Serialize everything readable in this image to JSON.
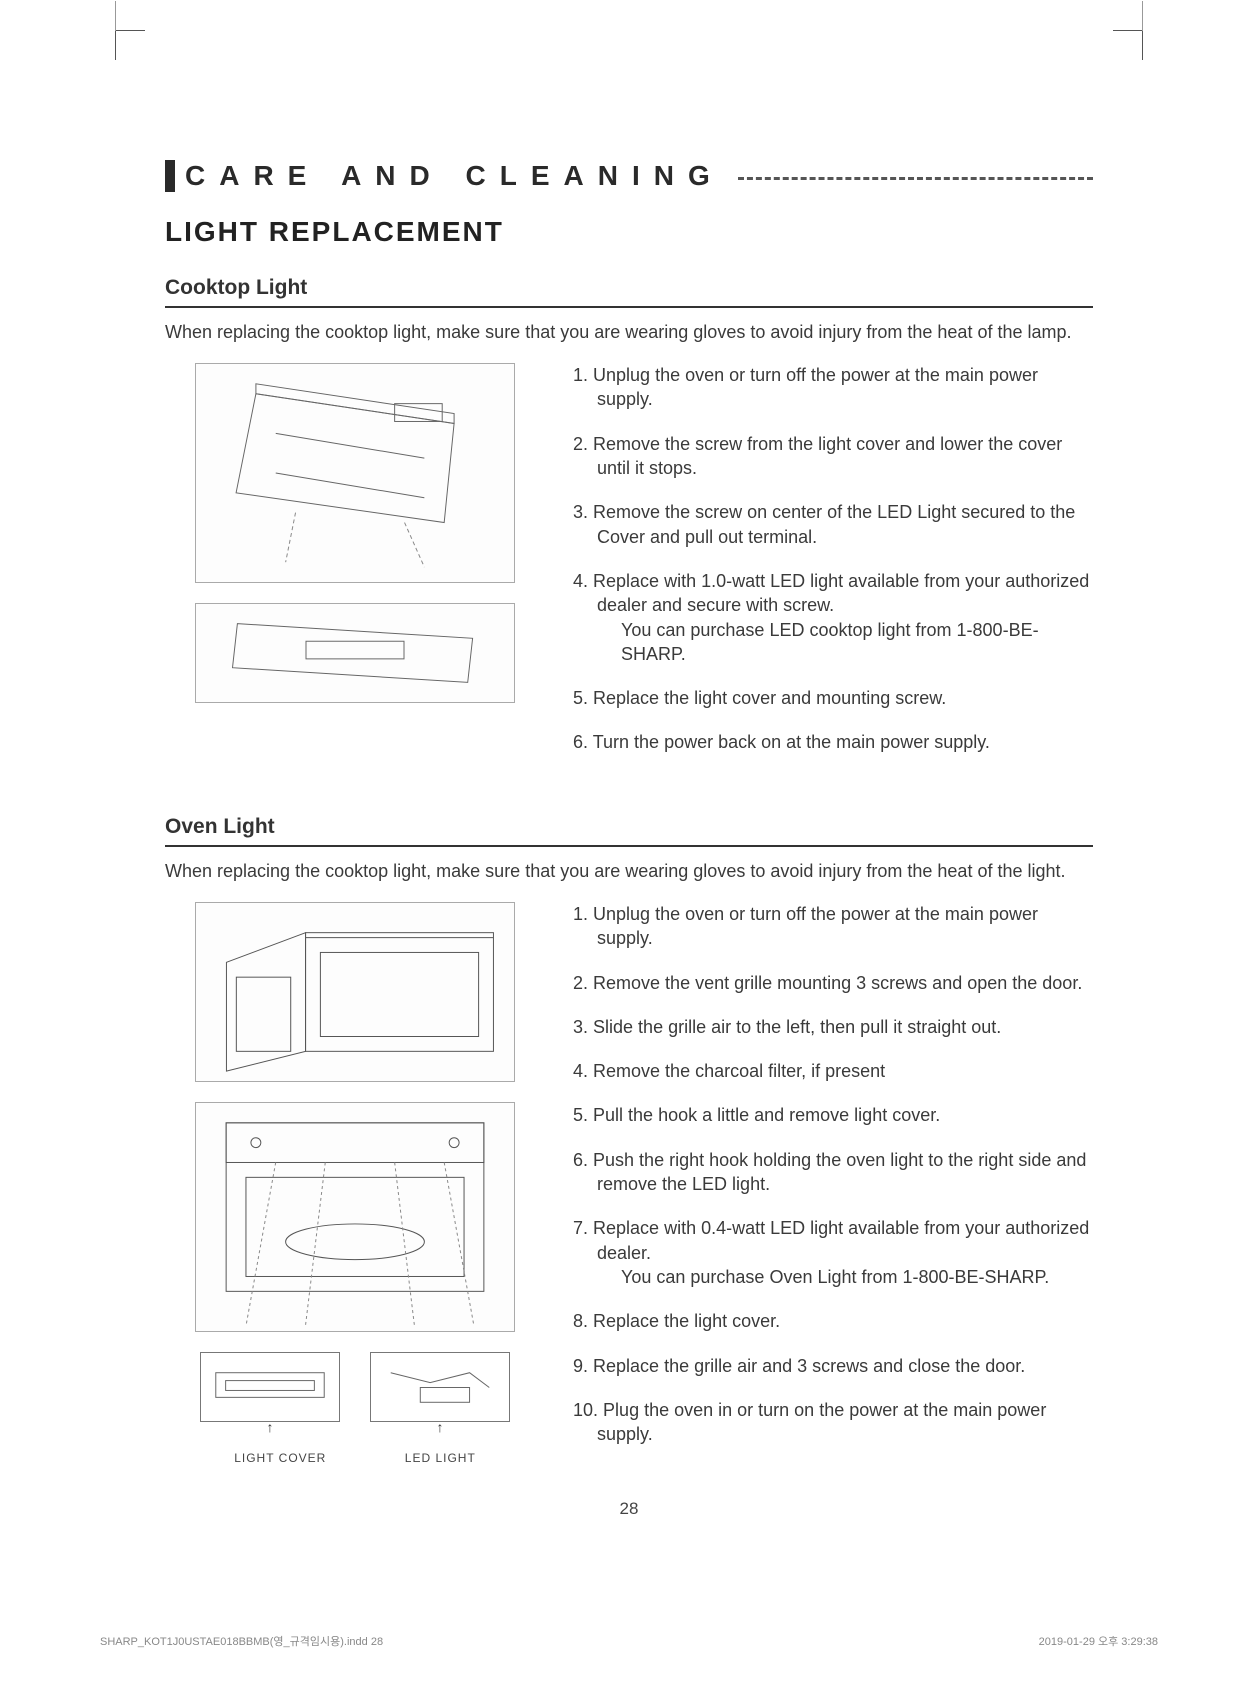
{
  "section_header": "CARE AND CLEANING",
  "main_title": "LIGHT REPLACEMENT",
  "cooktop": {
    "heading": "Cooktop Light",
    "intro": "When replacing the cooktop light, make sure that you are wearing gloves to avoid injury from the heat of the lamp.",
    "steps": [
      "Unplug the oven or turn off the power at the main power supply.",
      "Remove the screw from the light cover and lower the cover until it stops.",
      "Remove the screw on center of the LED Light secured to the Cover and pull out terminal.",
      "Replace with 1.0-watt LED light available from your authorized dealer and secure with screw.\nYou can purchase LED cooktop light from 1-800-BE-SHARP.",
      "Replace the light cover and mounting screw.",
      "Turn the power back on at the main power supply."
    ]
  },
  "oven": {
    "heading": "Oven Light",
    "intro": "When replacing the cooktop light, make sure that you are wearing gloves to avoid injury from the heat of the light.",
    "steps": [
      "Unplug the oven or turn off the power at the main power supply.",
      "Remove the vent grille mounting 3 screws and open the door.",
      "Slide the grille air to the left, then pull it straight out.",
      "Remove the charcoal filter, if present",
      "Pull the hook a little and remove light cover.",
      "Push the right hook holding the oven light to the right side and remove the LED light.",
      "Replace with 0.4-watt LED light available from your authorized dealer.\nYou can purchase Oven Light from 1-800-BE-SHARP.",
      "Replace the light cover.",
      "Replace the grille air and 3 screws and close the door.",
      "Plug the oven in or turn on the power at the main power supply."
    ],
    "callout_left": "LIGHT COVER",
    "callout_right": "LED LIGHT"
  },
  "page_number": "28",
  "footer_left": "SHARP_KOT1J0USTAE018BBMB(영_규격임시용).indd   28",
  "footer_right": "2019-01-29   오후 3:29:38"
}
